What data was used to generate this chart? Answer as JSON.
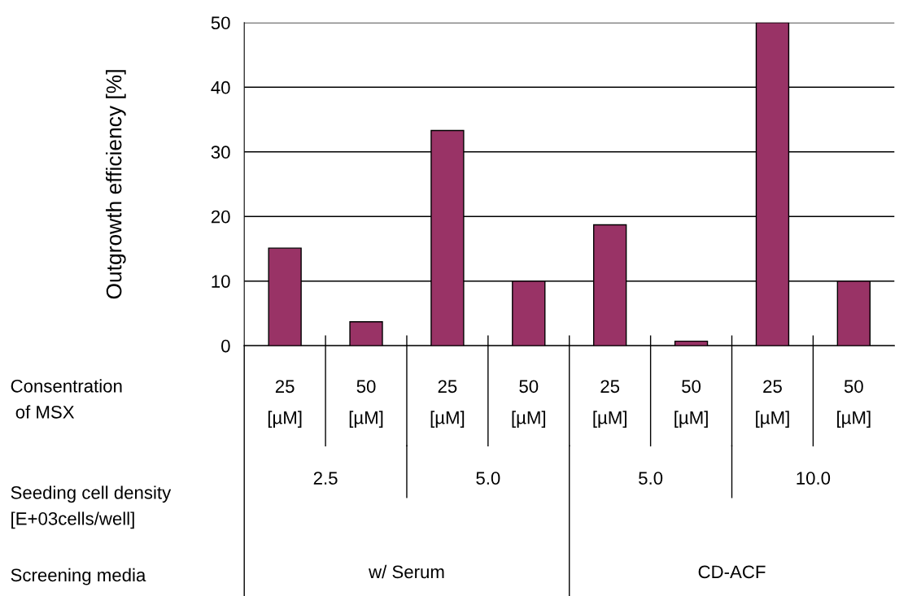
{
  "chart_data": {
    "type": "bar",
    "ylabel": "Outgrowth efficiency [%]",
    "categories": [
      "25\n[µM]",
      "50\n[µM]",
      "25\n[µM]",
      "50\n[µM]",
      "25\n[µM]",
      "50\n[µM]",
      "25\n[µM]",
      "50\n[µM]"
    ],
    "values": [
      15.1,
      3.7,
      33.3,
      10,
      18.7,
      0.7,
      50,
      10
    ],
    "color": "#993366",
    "ylim": [
      0,
      50
    ],
    "yticks": [
      0,
      10,
      20,
      30,
      40,
      50
    ],
    "grid": "y",
    "annotations": [
      "Consentration\n of MSX",
      "Seeding cell density\n[E+03cells/well]",
      "Screening media",
      "2.5",
      "5.0",
      "5.0",
      "10.0",
      "w/ Serum",
      "CD-ACF"
    ]
  }
}
